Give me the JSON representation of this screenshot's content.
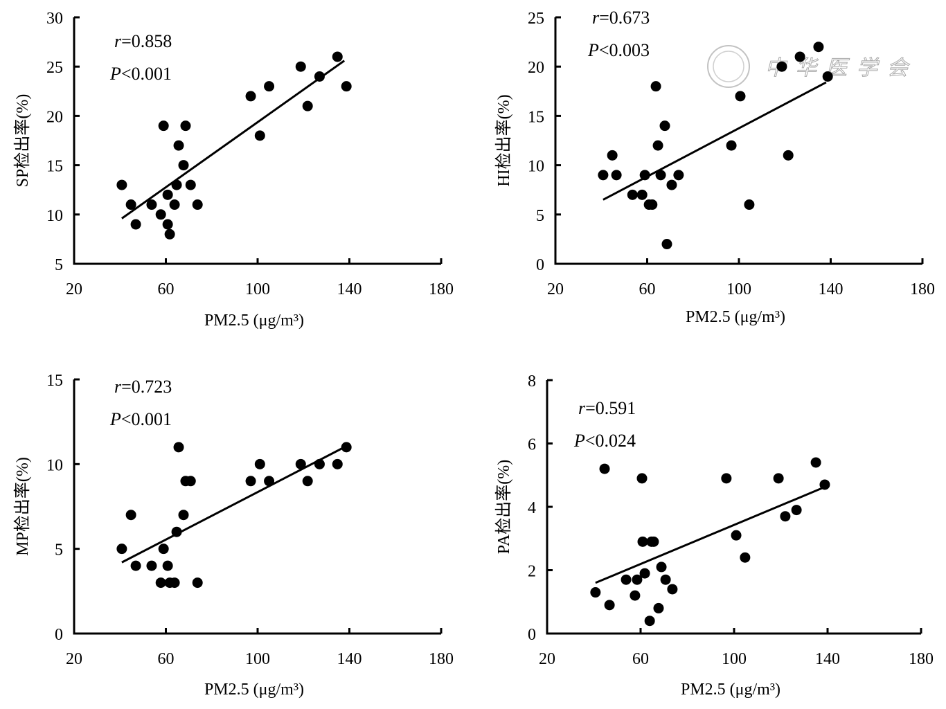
{
  "chart_data": [
    {
      "type": "scatter",
      "panel": "top-left",
      "title": "",
      "xlabel": "PM2.5 (μg/m³)",
      "ylabel": "SP检出率(%)",
      "xlim": [
        20,
        180
      ],
      "ylim": [
        5,
        30
      ],
      "xticks": [
        20,
        60,
        100,
        140,
        180
      ],
      "yticks": [
        5,
        10,
        15,
        20,
        25,
        30
      ],
      "grid": false,
      "annotations": {
        "r_label": "r",
        "r_value": "=0.858",
        "p_label": "P",
        "p_value": "<0.001"
      },
      "points": [
        [
          40.8,
          13
        ],
        [
          44.8,
          11
        ],
        [
          46.9,
          9
        ],
        [
          53.8,
          11
        ],
        [
          57.8,
          10
        ],
        [
          59,
          19
        ],
        [
          60.8,
          12
        ],
        [
          60.8,
          9
        ],
        [
          61.7,
          8
        ],
        [
          63.8,
          11
        ],
        [
          64.7,
          13
        ],
        [
          65.6,
          17
        ],
        [
          67.7,
          15
        ],
        [
          68.6,
          19
        ],
        [
          70.8,
          13
        ],
        [
          73.8,
          11
        ],
        [
          97,
          22
        ],
        [
          101,
          18
        ],
        [
          105,
          23
        ],
        [
          118.8,
          25
        ],
        [
          121.8,
          21
        ],
        [
          127,
          24
        ],
        [
          134.8,
          26
        ],
        [
          138.7,
          23
        ]
      ],
      "fit_line": [
        [
          40.8,
          9.6
        ],
        [
          137.8,
          25.6
        ]
      ]
    },
    {
      "type": "scatter",
      "panel": "top-right",
      "title": "",
      "xlabel": "PM2.5 (μg/m³)",
      "ylabel": "HI检出率(%)",
      "xlim": [
        20,
        180
      ],
      "ylim": [
        0,
        25
      ],
      "xticks": [
        20,
        60,
        100,
        140,
        180
      ],
      "yticks": [
        0,
        5,
        10,
        15,
        20,
        25
      ],
      "grid": false,
      "annotations": {
        "r_label": "r",
        "r_value": "=0.673",
        "p_label": "P",
        "p_value": "<0.003"
      },
      "points": [
        [
          40.8,
          9
        ],
        [
          44.8,
          11
        ],
        [
          46.6,
          9
        ],
        [
          53.6,
          7
        ],
        [
          57.8,
          7
        ],
        [
          59,
          9
        ],
        [
          60.8,
          6
        ],
        [
          62.2,
          6
        ],
        [
          63.8,
          18
        ],
        [
          64.7,
          12
        ],
        [
          65.9,
          9
        ],
        [
          67.7,
          14
        ],
        [
          68.6,
          2
        ],
        [
          70.7,
          8
        ],
        [
          73.7,
          9
        ],
        [
          96.7,
          12
        ],
        [
          100.6,
          17
        ],
        [
          104.5,
          6
        ],
        [
          118.7,
          20
        ],
        [
          121.5,
          11
        ],
        [
          126.6,
          21
        ],
        [
          134.7,
          22
        ],
        [
          138.7,
          19
        ]
      ],
      "fit_line": [
        [
          40.8,
          6.5
        ],
        [
          138,
          18.4
        ]
      ],
      "watermark": "中华医学会"
    },
    {
      "type": "scatter",
      "panel": "bottom-left",
      "title": "",
      "xlabel": "PM2.5 (μg/m³)",
      "ylabel": "MP检出率(%)",
      "xlim": [
        20,
        180
      ],
      "ylim": [
        0,
        15
      ],
      "xticks": [
        20,
        60,
        100,
        140,
        180
      ],
      "yticks": [
        0,
        5,
        10,
        15
      ],
      "grid": false,
      "annotations": {
        "r_label": "r",
        "r_value": "=0.723",
        "p_label": "P",
        "p_value": "<0.001"
      },
      "points": [
        [
          40.8,
          5
        ],
        [
          44.8,
          7
        ],
        [
          46.9,
          4
        ],
        [
          53.8,
          4
        ],
        [
          57.8,
          3
        ],
        [
          59,
          5
        ],
        [
          60.8,
          4
        ],
        [
          61.7,
          3
        ],
        [
          63.8,
          3
        ],
        [
          64.7,
          6
        ],
        [
          65.6,
          11
        ],
        [
          67.7,
          7
        ],
        [
          68.6,
          9
        ],
        [
          70.8,
          9
        ],
        [
          73.8,
          3
        ],
        [
          97,
          9
        ],
        [
          101,
          10
        ],
        [
          105,
          9
        ],
        [
          118.8,
          10
        ],
        [
          121.8,
          9
        ],
        [
          127,
          10
        ],
        [
          134.8,
          10
        ],
        [
          138.7,
          11
        ]
      ],
      "fit_line": [
        [
          40.8,
          4.2
        ],
        [
          137.8,
          11.0
        ]
      ]
    },
    {
      "type": "scatter",
      "panel": "bottom-right",
      "title": "",
      "xlabel": "PM2.5 (μg/m³)",
      "ylabel": "PA检出率(%)",
      "xlim": [
        20,
        180
      ],
      "ylim": [
        0,
        8
      ],
      "xticks": [
        20,
        60,
        100,
        140,
        180
      ],
      "yticks": [
        0,
        2,
        4,
        6,
        8
      ],
      "grid": false,
      "annotations": {
        "r_label": "r",
        "r_value": "=0.591",
        "p_label": "P",
        "p_value": "<0.024"
      },
      "points": [
        [
          40.7,
          1.3
        ],
        [
          44.6,
          5.2
        ],
        [
          46.7,
          0.9
        ],
        [
          53.8,
          1.7
        ],
        [
          57.6,
          1.2
        ],
        [
          58.5,
          1.7
        ],
        [
          60.6,
          4.9
        ],
        [
          60.9,
          2.9
        ],
        [
          61.8,
          1.9
        ],
        [
          63.9,
          0.4
        ],
        [
          64.7,
          2.9
        ],
        [
          65.6,
          2.9
        ],
        [
          67.7,
          0.8
        ],
        [
          68.9,
          2.1
        ],
        [
          70.7,
          1.7
        ],
        [
          73.6,
          1.4
        ],
        [
          96.7,
          4.9
        ],
        [
          100.9,
          3.1
        ],
        [
          104.7,
          2.4
        ],
        [
          119,
          4.9
        ],
        [
          121.9,
          3.7
        ],
        [
          126.7,
          3.9
        ],
        [
          135,
          5.4
        ],
        [
          138.8,
          4.7
        ]
      ],
      "fit_line": [
        [
          40.7,
          1.6
        ],
        [
          138,
          4.6
        ]
      ]
    }
  ]
}
